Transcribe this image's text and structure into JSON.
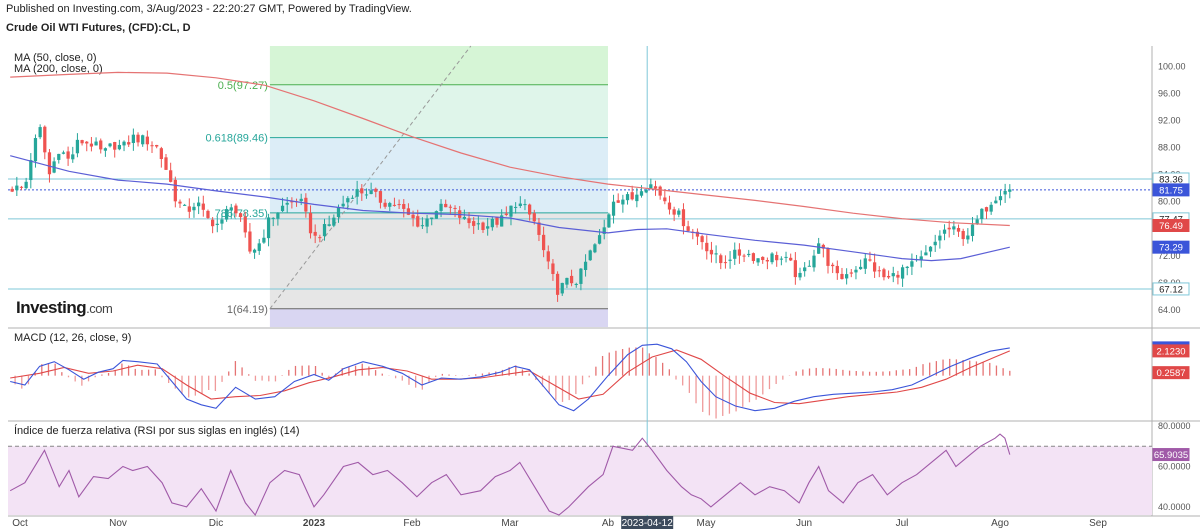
{
  "header": {
    "published": "Published on Investing.com, 3/Aug/2023 - 22:20:27 GMT, Powered by TradingView.",
    "title": "Crude Oil WTI Futures, (CFD):CL, D"
  },
  "logo": {
    "text_bold": "Investing",
    "text_light": ".com"
  },
  "colors": {
    "up": "#26a69a",
    "down": "#ef5350",
    "ma50": "#5b5fd6",
    "ma200": "#e57373",
    "macd": "#3b55d9",
    "signal": "#e04848",
    "rsi": "#a05aa8",
    "rsi_bg": "#f3e3f5",
    "hline": "#7fc8d8",
    "price": "#3b55d9"
  },
  "chart_data": [
    {
      "type": "candlestick",
      "title": "Crude Oil WTI Futures, (CFD):CL, D",
      "ylim": [
        61.5,
        103
      ],
      "y_ticks": [
        "100.00",
        "96.00",
        "92.00",
        "88.00",
        "84.00",
        "80.00",
        "76.00",
        "72.00",
        "68.00",
        "64.00"
      ],
      "y_tick_values": [
        100,
        96,
        92,
        88,
        84,
        80,
        76,
        72,
        68,
        64
      ],
      "x_labels": [
        "Oct",
        "Nov",
        "Dic",
        "2023",
        "Feb",
        "Mar",
        "Ab",
        "May",
        "Jun",
        "Jul",
        "Ago",
        "Sep"
      ],
      "x_label_months": [
        0,
        1,
        2,
        3,
        4,
        5,
        6,
        7,
        8,
        9,
        10,
        11
      ],
      "cursor_date": "2023-04-12",
      "cursor_month": 6.4,
      "indicators": [
        "MA (50, close, 0)",
        "MA (200, close, 0)"
      ],
      "fibonacci": [
        {
          "label": "0.5(97.27)",
          "value": 97.27,
          "color": "#4caf50"
        },
        {
          "label": "0.618(89.46)",
          "value": 89.46,
          "color": "#26a69a"
        },
        {
          "label": "786(78.35)",
          "value": 78.35,
          "color": "#26a69a"
        },
        {
          "label": "1(64.19)",
          "value": 64.19,
          "color": "#666666"
        }
      ],
      "fib_x_range_month": [
        2.55,
        6.0
      ],
      "horizontal_lines": [
        83.36,
        77.47,
        67.12
      ],
      "price_badges": [
        {
          "value": 83.36,
          "label": "83.36",
          "bg": "#ffffff",
          "fg": "#222222"
        },
        {
          "value": 81.75,
          "label": "81.75",
          "bg": "#3b55d9",
          "fg": "#ffffff"
        },
        {
          "value": 77.47,
          "label": "77.47",
          "bg": "#ffffff",
          "fg": "#222222"
        },
        {
          "value": 76.49,
          "label": "76.49",
          "bg": "#e04848",
          "fg": "#ffffff"
        },
        {
          "value": 73.29,
          "label": "73.29",
          "bg": "#3b55d9",
          "fg": "#ffffff"
        },
        {
          "value": 67.12,
          "label": "67.12",
          "bg": "#ffffff",
          "fg": "#222222"
        }
      ],
      "close_anchors": [
        [
          -0.1,
          82
        ],
        [
          0.05,
          82
        ],
        [
          0.1,
          86
        ],
        [
          0.2,
          91
        ],
        [
          0.3,
          84
        ],
        [
          0.4,
          88
        ],
        [
          0.5,
          86
        ],
        [
          0.6,
          89
        ],
        [
          0.75,
          88.5
        ],
        [
          0.85,
          87
        ],
        [
          0.95,
          88.5
        ],
        [
          1.05,
          88
        ],
        [
          1.15,
          89.5
        ],
        [
          1.3,
          89
        ],
        [
          1.4,
          88
        ],
        [
          1.5,
          84.5
        ],
        [
          1.6,
          80
        ],
        [
          1.7,
          78.5
        ],
        [
          1.8,
          80
        ],
        [
          1.9,
          77.5
        ],
        [
          2.05,
          76.5
        ],
        [
          2.15,
          80
        ],
        [
          2.25,
          77
        ],
        [
          2.35,
          72.5
        ],
        [
          2.45,
          74
        ],
        [
          2.55,
          77.5
        ],
        [
          2.7,
          79.5
        ],
        [
          2.85,
          80.5
        ],
        [
          3.0,
          74.5
        ],
        [
          3.15,
          76.5
        ],
        [
          3.25,
          79
        ],
        [
          3.4,
          81.5
        ],
        [
          3.55,
          81.5
        ],
        [
          3.7,
          80
        ],
        [
          3.85,
          79.5
        ],
        [
          3.95,
          78
        ],
        [
          4.1,
          76.5
        ],
        [
          4.25,
          79
        ],
        [
          4.4,
          79
        ],
        [
          4.55,
          77
        ],
        [
          4.75,
          76.5
        ],
        [
          4.95,
          77.5
        ],
        [
          5.05,
          80
        ],
        [
          5.15,
          79
        ],
        [
          5.25,
          77
        ],
        [
          5.4,
          70
        ],
        [
          5.5,
          66.5
        ],
        [
          5.55,
          68
        ],
        [
          5.7,
          68.5
        ],
        [
          5.8,
          72
        ],
        [
          5.95,
          75.5
        ],
        [
          6.05,
          80.5
        ],
        [
          6.25,
          80.5
        ],
        [
          6.35,
          82.5
        ],
        [
          6.45,
          82.5
        ],
        [
          6.6,
          80
        ],
        [
          6.75,
          77.5
        ],
        [
          6.85,
          75.5
        ],
        [
          6.95,
          74.5
        ],
        [
          7.05,
          72.5
        ],
        [
          7.15,
          71
        ],
        [
          7.25,
          72
        ],
        [
          7.4,
          72.5
        ],
        [
          7.55,
          71.5
        ],
        [
          7.7,
          72
        ],
        [
          7.85,
          71
        ],
        [
          7.95,
          68.5
        ],
        [
          8.05,
          71
        ],
        [
          8.15,
          74
        ],
        [
          8.25,
          71
        ],
        [
          8.35,
          68.5
        ],
        [
          8.5,
          70
        ],
        [
          8.65,
          71.5
        ],
        [
          8.75,
          69.5
        ],
        [
          8.85,
          68.5
        ],
        [
          8.95,
          69.5
        ],
        [
          9.1,
          70.5
        ],
        [
          9.2,
          71.5
        ],
        [
          9.3,
          73
        ],
        [
          9.4,
          75.5
        ],
        [
          9.5,
          76
        ],
        [
          9.6,
          75
        ],
        [
          9.7,
          75.5
        ],
        [
          9.8,
          78
        ],
        [
          9.9,
          80
        ],
        [
          10.0,
          81.5
        ],
        [
          10.05,
          82
        ],
        [
          10.1,
          81.75
        ]
      ],
      "ma50_points": [
        [
          -0.1,
          86.8
        ],
        [
          0.5,
          84.5
        ],
        [
          1.0,
          83.2
        ],
        [
          1.5,
          82.6
        ],
        [
          2.0,
          81.6
        ],
        [
          2.5,
          80.7
        ],
        [
          3.0,
          79.6
        ],
        [
          3.5,
          78.7
        ],
        [
          4.0,
          78.3
        ],
        [
          4.5,
          78.1
        ],
        [
          5.0,
          77.6
        ],
        [
          5.5,
          76.2
        ],
        [
          6.0,
          75.4
        ],
        [
          6.3,
          75.9
        ],
        [
          6.6,
          76.0
        ],
        [
          7.0,
          75.2
        ],
        [
          7.5,
          74.3
        ],
        [
          8.0,
          73.6
        ],
        [
          8.5,
          72.6
        ],
        [
          9.0,
          71.6
        ],
        [
          9.3,
          71.3
        ],
        [
          9.6,
          71.6
        ],
        [
          10.1,
          73.29
        ]
      ],
      "ma200_points": [
        [
          -0.1,
          98.4
        ],
        [
          0.5,
          98.8
        ],
        [
          1.0,
          99.1
        ],
        [
          1.5,
          99.0
        ],
        [
          2.0,
          98.3
        ],
        [
          2.5,
          97.2
        ],
        [
          3.0,
          94.9
        ],
        [
          3.5,
          92.3
        ],
        [
          4.0,
          89.6
        ],
        [
          4.5,
          87.2
        ],
        [
          5.0,
          85.1
        ],
        [
          5.5,
          83.7
        ],
        [
          6.0,
          82.6
        ],
        [
          6.5,
          81.8
        ],
        [
          7.0,
          81.0
        ],
        [
          7.5,
          80.2
        ],
        [
          8.0,
          79.3
        ],
        [
          8.5,
          78.3
        ],
        [
          9.0,
          77.5
        ],
        [
          9.5,
          76.9
        ],
        [
          10.1,
          76.49
        ]
      ]
    },
    {
      "type": "macd",
      "title": "MACD (12, 26, close, 9)",
      "ylim": [
        -3.8,
        4.0
      ],
      "y_ticks": [
        "0.0000"
      ],
      "y_tick_values": [
        0
      ],
      "badges": [
        {
          "value": 2.3817,
          "label": "2.3817",
          "bg": "#3b55d9",
          "fg": "#ffffff"
        },
        {
          "value": 2.123,
          "label": "2.1230",
          "bg": "#e04848",
          "fg": "#ffffff"
        },
        {
          "value": 0.2587,
          "label": "0.2587",
          "bg": "#e04848",
          "fg": "#ffffff"
        }
      ],
      "macd_points": [
        [
          -0.1,
          -0.5
        ],
        [
          0.05,
          -0.8
        ],
        [
          0.2,
          0.8
        ],
        [
          0.35,
          1.2
        ],
        [
          0.5,
          0.5
        ],
        [
          0.65,
          -0.3
        ],
        [
          0.8,
          0.3
        ],
        [
          0.95,
          0.6
        ],
        [
          1.05,
          1.3
        ],
        [
          1.2,
          1.2
        ],
        [
          1.4,
          1.0
        ],
        [
          1.55,
          -0.5
        ],
        [
          1.7,
          -2.0
        ],
        [
          1.85,
          -2.5
        ],
        [
          2.0,
          -2.8
        ],
        [
          2.2,
          -1.0
        ],
        [
          2.4,
          -2.0
        ],
        [
          2.6,
          -1.8
        ],
        [
          2.8,
          -0.5
        ],
        [
          3.0,
          0.1
        ],
        [
          3.15,
          -0.4
        ],
        [
          3.3,
          0.6
        ],
        [
          3.5,
          1.2
        ],
        [
          3.7,
          0.8
        ],
        [
          3.9,
          0.2
        ],
        [
          4.1,
          -0.8
        ],
        [
          4.3,
          -0.2
        ],
        [
          4.5,
          -0.3
        ],
        [
          4.7,
          -0.1
        ],
        [
          4.9,
          0.3
        ],
        [
          5.05,
          0.8
        ],
        [
          5.2,
          0.5
        ],
        [
          5.35,
          -1.0
        ],
        [
          5.5,
          -2.5
        ],
        [
          5.65,
          -3.0
        ],
        [
          5.8,
          -2.0
        ],
        [
          6.0,
          0.0
        ],
        [
          6.2,
          1.8
        ],
        [
          6.35,
          2.6
        ],
        [
          6.5,
          2.7
        ],
        [
          6.65,
          2.3
        ],
        [
          6.8,
          1.2
        ],
        [
          6.95,
          -0.5
        ],
        [
          7.1,
          -1.8
        ],
        [
          7.3,
          -2.6
        ],
        [
          7.5,
          -3.0
        ],
        [
          7.7,
          -2.8
        ],
        [
          7.9,
          -2.2
        ],
        [
          8.1,
          -1.8
        ],
        [
          8.3,
          -1.6
        ],
        [
          8.5,
          -1.5
        ],
        [
          8.7,
          -1.4
        ],
        [
          8.9,
          -1.2
        ],
        [
          9.1,
          -0.8
        ],
        [
          9.3,
          0.0
        ],
        [
          9.5,
          0.8
        ],
        [
          9.7,
          1.5
        ],
        [
          9.9,
          2.1
        ],
        [
          10.1,
          2.38
        ]
      ],
      "signal_points": [
        [
          -0.1,
          -0.2
        ],
        [
          0.2,
          0.2
        ],
        [
          0.45,
          0.7
        ],
        [
          0.7,
          0.2
        ],
        [
          0.95,
          0.4
        ],
        [
          1.2,
          0.9
        ],
        [
          1.45,
          0.6
        ],
        [
          1.7,
          -0.8
        ],
        [
          1.95,
          -2.0
        ],
        [
          2.2,
          -1.8
        ],
        [
          2.45,
          -1.7
        ],
        [
          2.7,
          -1.3
        ],
        [
          2.95,
          -0.6
        ],
        [
          3.2,
          -0.1
        ],
        [
          3.45,
          0.5
        ],
        [
          3.7,
          0.7
        ],
        [
          3.95,
          0.4
        ],
        [
          4.2,
          -0.3
        ],
        [
          4.45,
          -0.3
        ],
        [
          4.7,
          -0.2
        ],
        [
          4.95,
          0.1
        ],
        [
          5.2,
          0.4
        ],
        [
          5.45,
          -0.8
        ],
        [
          5.7,
          -2.0
        ],
        [
          5.95,
          -1.6
        ],
        [
          6.2,
          0.3
        ],
        [
          6.45,
          1.6
        ],
        [
          6.7,
          2.2
        ],
        [
          6.95,
          1.4
        ],
        [
          7.2,
          -0.1
        ],
        [
          7.45,
          -1.5
        ],
        [
          7.7,
          -2.3
        ],
        [
          7.95,
          -2.4
        ],
        [
          8.2,
          -2.1
        ],
        [
          8.45,
          -1.8
        ],
        [
          8.7,
          -1.6
        ],
        [
          8.95,
          -1.4
        ],
        [
          9.2,
          -1.0
        ],
        [
          9.45,
          -0.3
        ],
        [
          9.7,
          0.7
        ],
        [
          9.95,
          1.6
        ],
        [
          10.1,
          2.12
        ]
      ]
    },
    {
      "type": "rsi",
      "title": "Índice de fuerza relativa (RSI por sus siglas en inglés) (14)",
      "ylim": [
        36,
        82
      ],
      "y_ticks": [
        "80.0000",
        "60.0000",
        "40.0000"
      ],
      "y_tick_values": [
        80,
        60,
        40
      ],
      "band": [
        30,
        70
      ],
      "badges": [
        {
          "value": 65.9035,
          "label": "65.9035",
          "bg": "#a05aa8",
          "fg": "#ffffff"
        }
      ],
      "rsi_points": [
        [
          -0.1,
          48
        ],
        [
          0.05,
          52
        ],
        [
          0.25,
          68
        ],
        [
          0.4,
          50
        ],
        [
          0.5,
          58
        ],
        [
          0.6,
          45
        ],
        [
          0.75,
          55
        ],
        [
          0.9,
          54
        ],
        [
          1.05,
          60
        ],
        [
          1.15,
          58
        ],
        [
          1.3,
          60
        ],
        [
          1.45,
          52
        ],
        [
          1.55,
          42
        ],
        [
          1.7,
          40
        ],
        [
          1.85,
          49
        ],
        [
          2.0,
          38
        ],
        [
          2.15,
          58
        ],
        [
          2.3,
          42
        ],
        [
          2.4,
          36
        ],
        [
          2.55,
          52
        ],
        [
          2.7,
          58
        ],
        [
          2.85,
          56
        ],
        [
          3.0,
          40
        ],
        [
          3.1,
          46
        ],
        [
          3.3,
          60
        ],
        [
          3.45,
          62
        ],
        [
          3.6,
          56
        ],
        [
          3.75,
          58
        ],
        [
          3.9,
          52
        ],
        [
          4.05,
          45
        ],
        [
          4.2,
          52
        ],
        [
          4.35,
          56
        ],
        [
          4.5,
          46
        ],
        [
          4.7,
          48
        ],
        [
          4.85,
          55
        ],
        [
          5.0,
          58
        ],
        [
          5.1,
          62
        ],
        [
          5.25,
          50
        ],
        [
          5.4,
          38
        ],
        [
          5.5,
          36
        ],
        [
          5.6,
          40
        ],
        [
          5.8,
          50
        ],
        [
          5.95,
          56
        ],
        [
          6.05,
          70
        ],
        [
          6.25,
          68
        ],
        [
          6.35,
          74
        ],
        [
          6.45,
          68
        ],
        [
          6.6,
          58
        ],
        [
          6.75,
          50
        ],
        [
          6.85,
          46
        ],
        [
          6.95,
          44
        ],
        [
          7.05,
          40
        ],
        [
          7.2,
          46
        ],
        [
          7.35,
          52
        ],
        [
          7.5,
          46
        ],
        [
          7.65,
          50
        ],
        [
          7.8,
          48
        ],
        [
          7.95,
          42
        ],
        [
          8.05,
          52
        ],
        [
          8.15,
          60
        ],
        [
          8.25,
          48
        ],
        [
          8.4,
          42
        ],
        [
          8.55,
          52
        ],
        [
          8.7,
          56
        ],
        [
          8.85,
          46
        ],
        [
          9.0,
          52
        ],
        [
          9.15,
          56
        ],
        [
          9.3,
          62
        ],
        [
          9.45,
          68
        ],
        [
          9.55,
          60
        ],
        [
          9.7,
          66
        ],
        [
          9.8,
          70
        ],
        [
          9.95,
          74
        ],
        [
          10.0,
          76
        ],
        [
          10.05,
          74
        ],
        [
          10.1,
          65.9
        ]
      ]
    }
  ]
}
